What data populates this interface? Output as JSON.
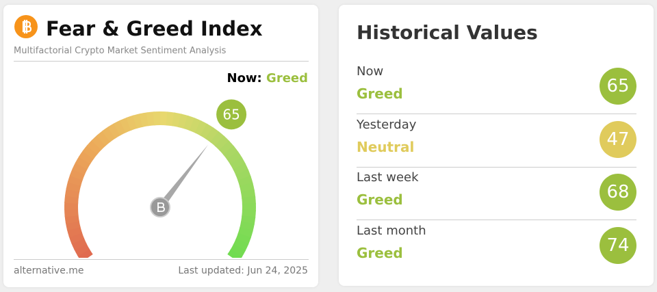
{
  "left_card": {
    "title": "Fear & Greed Index",
    "subtitle": "Multifactorial Crypto Market Sentiment Analysis",
    "now_label": "Now:",
    "now_class": "Greed",
    "now_color": "#9bbf3e",
    "gauge": {
      "value": 65,
      "range": [
        0,
        100
      ],
      "badge_color": "#9bbf3e"
    },
    "footer_left": "alternative.me",
    "footer_right": "Last updated: Jun 24, 2025"
  },
  "right_card": {
    "title": "Historical Values",
    "rows": [
      {
        "period": "Now",
        "class": "Greed",
        "value": 65,
        "color": "#9bbf3e"
      },
      {
        "period": "Yesterday",
        "class": "Neutral",
        "value": 47,
        "color": "#e0cb5c"
      },
      {
        "period": "Last week",
        "class": "Greed",
        "value": 68,
        "color": "#9bbf3e"
      },
      {
        "period": "Last month",
        "class": "Greed",
        "value": 74,
        "color": "#9bbf3e"
      }
    ]
  }
}
